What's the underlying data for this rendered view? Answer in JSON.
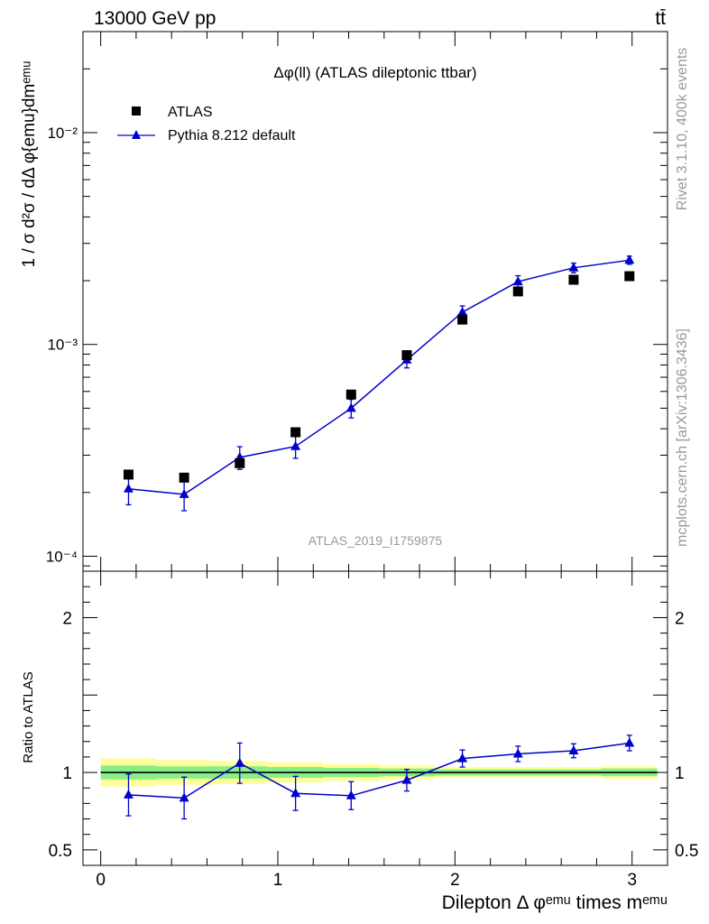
{
  "header": {
    "energy_label": "13000 GeV pp",
    "process_label": "tt̄"
  },
  "side_labels": {
    "rivet": "Rivet 3.1.10,  400k events",
    "mcplots": "mcplots.cern.ch [arXiv:1306.3436]"
  },
  "colors": {
    "data": "#000000",
    "mc": "#0000cc",
    "band_inner": "#88ee88",
    "band_outer": "#ffff99"
  },
  "chart_data": [
    {
      "type": "scatter",
      "panel": "main",
      "title": "Δφ(ll) (ATLAS dileptonic ttbar)",
      "watermark": "ATLAS_2019_I1759875",
      "ylabel": "1 / σ  d²σ / dΔ φ{emu}dmᵉᵐᵘ",
      "yscale": "log",
      "ylim": [
        8.5e-05,
        0.03
      ],
      "xlim": [
        -0.1,
        3.2
      ],
      "ytick_labels": [
        "10⁻⁴",
        "10⁻³",
        "10⁻²"
      ],
      "ytick_values": [
        0.0001,
        0.001,
        0.01
      ],
      "legend_position": "top-left",
      "x": [
        0.157,
        0.471,
        0.785,
        1.1,
        1.414,
        1.728,
        2.042,
        2.356,
        2.67,
        2.985
      ],
      "series": [
        {
          "name": "ATLAS",
          "marker": "square",
          "values": [
            0.000243,
            0.000235,
            0.000275,
            0.000385,
            0.00058,
            0.00089,
            0.00131,
            0.00178,
            0.00202,
            0.0021
          ]
        },
        {
          "name": "Pythia 8.212 default",
          "marker": "triangle",
          "values": [
            0.000208,
            0.000196,
            0.000293,
            0.00033,
            0.0005,
            0.000845,
            0.00142,
            0.00198,
            0.0023,
            0.0025
          ],
          "err_low": [
            3.3e-05,
            3.2e-05,
            3.6e-05,
            4e-05,
            5e-05,
            7e-05,
            0.0001,
            0.00013,
            0.00012,
            0.00011
          ],
          "err_high": [
            3.3e-05,
            3.2e-05,
            3.6e-05,
            4e-05,
            5e-05,
            7e-05,
            0.0001,
            0.00013,
            0.00012,
            0.00011
          ]
        }
      ]
    },
    {
      "type": "line",
      "panel": "ratio",
      "xlabel": "Dilepton Δ φᵉᵐᵘ times mᵉᵐᵘ",
      "ylabel": "Ratio to ATLAS",
      "ylim": [
        0.4,
        2.3
      ],
      "xlim": [
        -0.1,
        3.2
      ],
      "ytick_labels": [
        "0.5",
        "1",
        "2"
      ],
      "ytick_values": [
        0.5,
        1,
        2
      ],
      "xtick_labels": [
        "0",
        "1",
        "2",
        "3"
      ],
      "xtick_values": [
        0,
        1,
        2,
        3
      ],
      "x": [
        0.157,
        0.471,
        0.785,
        1.1,
        1.414,
        1.728,
        2.042,
        2.356,
        2.67,
        2.985
      ],
      "bin_edges": [
        0,
        0.314,
        0.628,
        0.942,
        1.257,
        1.571,
        1.885,
        2.199,
        2.513,
        2.827,
        3.142
      ],
      "band_inner": [
        0.045,
        0.04,
        0.04,
        0.035,
        0.03,
        0.025,
        0.02,
        0.02,
        0.02,
        0.025
      ],
      "band_outer": [
        0.09,
        0.08,
        0.075,
        0.065,
        0.055,
        0.045,
        0.035,
        0.035,
        0.035,
        0.04
      ],
      "series": [
        {
          "name": "Pythia 8.212 default",
          "values": [
            0.855,
            0.835,
            1.06,
            0.865,
            0.85,
            0.95,
            1.09,
            1.12,
            1.14,
            1.19
          ],
          "err_low": [
            0.135,
            0.135,
            0.13,
            0.11,
            0.09,
            0.07,
            0.055,
            0.05,
            0.045,
            0.05
          ],
          "err_high": [
            0.135,
            0.135,
            0.13,
            0.11,
            0.09,
            0.07,
            0.055,
            0.05,
            0.045,
            0.05
          ]
        }
      ]
    }
  ]
}
